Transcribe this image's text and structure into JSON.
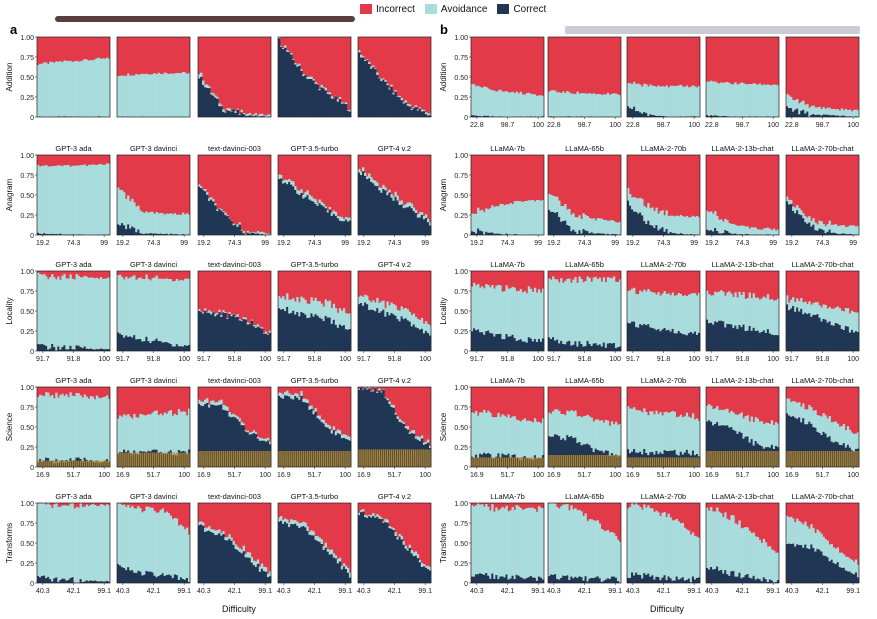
{
  "legend": {
    "incorrect": "Incorrect",
    "avoidance": "Avoidance",
    "correct": "Correct"
  },
  "colors": {
    "incorrect": "#e23a48",
    "avoidance": "#a9dcdc",
    "correct": "#1f3654",
    "supplement": "#b98a2e"
  },
  "panel_labels": {
    "a": "a",
    "b": "b"
  },
  "x_axis_title": "Difficulty",
  "chart_data": {
    "type": "area",
    "description_levels": [
      "Addition",
      "Anagram",
      "Locality",
      "Science",
      "Transforms"
    ],
    "ylim": [
      0,
      1
    ],
    "yticks": [
      "0",
      "0.25",
      "0.50",
      "0.75",
      "1.00"
    ],
    "groups": [
      {
        "panel": "a",
        "models": [
          "GPT-3 ada",
          "GPT-3 davinci",
          "text-davinci-003",
          "GPT-3.5-turbo",
          "GPT-4 v.2"
        ]
      },
      {
        "panel": "b",
        "models": [
          "LLaMA-7b",
          "LLaMA-65b",
          "LLaMA-2-70b",
          "LLaMA-2-13b-chat",
          "LLaMA-2-70b-chat"
        ]
      }
    ],
    "rows": [
      {
        "label": "Addition",
        "xticks_a": [],
        "xticks_b": [
          "22.8",
          "98.7",
          "100"
        ],
        "a": [
          {
            "correct": [
              0,
              0,
              0,
              0
            ],
            "avoid": [
              0.66,
              0.69,
              0.71,
              0.73
            ]
          },
          {
            "correct": [
              0,
              0,
              0,
              0
            ],
            "avoid": [
              0.52,
              0.54,
              0.55,
              0.55
            ]
          },
          {
            "correct": [
              0.5,
              0.1,
              0.02,
              0
            ],
            "avoid": [
              0.05,
              0.02,
              0.02,
              0.02
            ]
          },
          {
            "correct": [
              0.95,
              0.55,
              0.3,
              0.1
            ],
            "avoid": [
              0.02,
              0.02,
              0.02,
              0.02
            ]
          },
          {
            "correct": [
              0.8,
              0.45,
              0.15,
              0.02
            ],
            "avoid": [
              0.02,
              0.02,
              0.02,
              0.02
            ]
          }
        ],
        "b": [
          {
            "correct": [
              0.02,
              0,
              0,
              0
            ],
            "avoid": [
              0.38,
              0.33,
              0.3,
              0.27
            ]
          },
          {
            "correct": [
              0,
              0,
              0,
              0
            ],
            "avoid": [
              0.32,
              0.3,
              0.29,
              0.28
            ]
          },
          {
            "correct": [
              0.12,
              0.02,
              0,
              0
            ],
            "avoid": [
              0.3,
              0.38,
              0.38,
              0.38
            ]
          },
          {
            "correct": [
              0.02,
              0,
              0,
              0
            ],
            "avoid": [
              0.42,
              0.42,
              0.41,
              0.4
            ]
          },
          {
            "correct": [
              0.1,
              0.03,
              0.02,
              0
            ],
            "avoid": [
              0.15,
              0.1,
              0.08,
              0.08
            ]
          }
        ]
      },
      {
        "label": "Anagram",
        "xticks_a": [
          "19.2",
          "74.3",
          "99"
        ],
        "xticks_b": [
          "19.2",
          "74.3",
          "99"
        ],
        "a": [
          {
            "correct": [
              0.02,
              0.01,
              0,
              0
            ],
            "avoid": [
              0.85,
              0.86,
              0.87,
              0.88
            ]
          },
          {
            "correct": [
              0.15,
              0.02,
              0.01,
              0
            ],
            "avoid": [
              0.45,
              0.27,
              0.25,
              0.26
            ]
          },
          {
            "correct": [
              0.6,
              0.25,
              0.03,
              0
            ],
            "avoid": [
              0.02,
              0.02,
              0.02,
              0.02
            ]
          },
          {
            "correct": [
              0.72,
              0.5,
              0.3,
              0.15
            ],
            "avoid": [
              0.05,
              0.05,
              0.04,
              0.04
            ]
          },
          {
            "correct": [
              0.8,
              0.55,
              0.35,
              0.15
            ],
            "avoid": [
              0.05,
              0.05,
              0.05,
              0.05
            ]
          }
        ],
        "b": [
          {
            "correct": [
              0.05,
              0.02,
              0,
              0
            ],
            "avoid": [
              0.22,
              0.35,
              0.42,
              0.44
            ]
          },
          {
            "correct": [
              0.35,
              0.05,
              0.02,
              0
            ],
            "avoid": [
              0.2,
              0.2,
              0.18,
              0.16
            ]
          },
          {
            "correct": [
              0.4,
              0.1,
              0.02,
              0
            ],
            "avoid": [
              0.15,
              0.22,
              0.22,
              0.23
            ]
          },
          {
            "correct": [
              0.1,
              0.02,
              0,
              0
            ],
            "avoid": [
              0.25,
              0.12,
              0.08,
              0.07
            ]
          },
          {
            "correct": [
              0.4,
              0.1,
              0.02,
              0
            ],
            "avoid": [
              0.05,
              0.08,
              0.1,
              0.1
            ]
          }
        ]
      },
      {
        "label": "Locality",
        "xticks_a": [
          "91.7",
          "91.8",
          "100"
        ],
        "xticks_b": [
          "91.7",
          "91.8",
          "100"
        ],
        "a": [
          {
            "correct": [
              0.06,
              0.04,
              0.03,
              0.02
            ],
            "avoid": [
              0.88,
              0.88,
              0.89,
              0.89
            ]
          },
          {
            "correct": [
              0.2,
              0.15,
              0.1,
              0.06
            ],
            "avoid": [
              0.72,
              0.77,
              0.8,
              0.84
            ]
          },
          {
            "correct": [
              0.5,
              0.45,
              0.38,
              0.2
            ],
            "avoid": [
              0.02,
              0.02,
              0.02,
              0.02
            ]
          },
          {
            "correct": [
              0.55,
              0.45,
              0.4,
              0.25
            ],
            "avoid": [
              0.15,
              0.18,
              0.2,
              0.2
            ]
          },
          {
            "correct": [
              0.6,
              0.48,
              0.38,
              0.18
            ],
            "avoid": [
              0.1,
              0.12,
              0.13,
              0.12
            ]
          }
        ],
        "b": [
          {
            "correct": [
              0.25,
              0.2,
              0.15,
              0.12
            ],
            "avoid": [
              0.55,
              0.6,
              0.62,
              0.63
            ]
          },
          {
            "correct": [
              0.15,
              0.1,
              0.08,
              0.06
            ],
            "avoid": [
              0.75,
              0.8,
              0.82,
              0.83
            ]
          },
          {
            "correct": [
              0.35,
              0.3,
              0.25,
              0.2
            ],
            "avoid": [
              0.4,
              0.45,
              0.47,
              0.5
            ]
          },
          {
            "correct": [
              0.38,
              0.32,
              0.27,
              0.22
            ],
            "avoid": [
              0.35,
              0.4,
              0.42,
              0.45
            ]
          },
          {
            "correct": [
              0.55,
              0.45,
              0.35,
              0.2
            ],
            "avoid": [
              0.1,
              0.15,
              0.2,
              0.25
            ]
          }
        ]
      },
      {
        "label": "Science",
        "xticks_a": [
          "16.9",
          "51.7",
          "100"
        ],
        "xticks_b": [
          "16.9",
          "51.7",
          "100"
        ],
        "supplement": [
          0.08,
          0.18,
          0.2,
          0.2,
          0.22,
          0.12,
          0.15,
          0.12,
          0.2,
          0.2
        ],
        "a": [
          {
            "correct": [
              0.08,
              0.08,
              0.08,
              0.08
            ],
            "avoid": [
              0.82,
              0.82,
              0.8,
              0.8
            ]
          },
          {
            "correct": [
              0.18,
              0.18,
              0.18,
              0.18
            ],
            "avoid": [
              0.45,
              0.45,
              0.5,
              0.5
            ]
          },
          {
            "correct": [
              0.8,
              0.75,
              0.45,
              0.3
            ],
            "avoid": [
              0.05,
              0.05,
              0.03,
              0.03
            ]
          },
          {
            "correct": [
              0.88,
              0.85,
              0.5,
              0.3
            ],
            "avoid": [
              0.05,
              0.05,
              0.04,
              0.04
            ]
          },
          {
            "correct": [
              0.98,
              0.95,
              0.45,
              0.25
            ],
            "avoid": [
              0.02,
              0.02,
              0.03,
              0.04
            ]
          }
        ],
        "b": [
          {
            "correct": [
              0.15,
              0.14,
              0.12,
              0.12
            ],
            "avoid": [
              0.55,
              0.5,
              0.48,
              0.45
            ]
          },
          {
            "correct": [
              0.4,
              0.35,
              0.2,
              0.15
            ],
            "avoid": [
              0.3,
              0.32,
              0.38,
              0.4
            ]
          },
          {
            "correct": [
              0.2,
              0.18,
              0.18,
              0.17
            ],
            "avoid": [
              0.55,
              0.5,
              0.48,
              0.45
            ]
          },
          {
            "correct": [
              0.55,
              0.5,
              0.3,
              0.22
            ],
            "avoid": [
              0.2,
              0.2,
              0.3,
              0.3
            ]
          },
          {
            "correct": [
              0.65,
              0.55,
              0.3,
              0.2
            ],
            "avoid": [
              0.2,
              0.2,
              0.25,
              0.2
            ]
          }
        ]
      },
      {
        "label": "Transforms",
        "xticks_a": [
          "40.3",
          "42.1",
          "99.1"
        ],
        "xticks_b": [
          "40.3",
          "42.1",
          "99.1"
        ],
        "a": [
          {
            "correct": [
              0.06,
              0.04,
              0.03,
              0.02
            ],
            "avoid": [
              0.92,
              0.93,
              0.95,
              0.96
            ]
          },
          {
            "correct": [
              0.2,
              0.12,
              0.08,
              0.05
            ],
            "avoid": [
              0.78,
              0.8,
              0.8,
              0.6
            ]
          },
          {
            "correct": [
              0.7,
              0.6,
              0.35,
              0.05
            ],
            "avoid": [
              0.05,
              0.05,
              0.06,
              0.05
            ]
          },
          {
            "correct": [
              0.75,
              0.7,
              0.4,
              0.1
            ],
            "avoid": [
              0.05,
              0.05,
              0.05,
              0.05
            ]
          },
          {
            "correct": [
              0.88,
              0.8,
              0.45,
              0.12
            ],
            "avoid": [
              0.03,
              0.03,
              0.04,
              0.04
            ]
          }
        ],
        "b": [
          {
            "correct": [
              0.1,
              0.08,
              0.06,
              0.04
            ],
            "avoid": [
              0.88,
              0.85,
              0.86,
              0.88
            ]
          },
          {
            "correct": [
              0.08,
              0.06,
              0.05,
              0.04
            ],
            "avoid": [
              0.9,
              0.88,
              0.7,
              0.5
            ]
          },
          {
            "correct": [
              0.1,
              0.08,
              0.06,
              0.04
            ],
            "avoid": [
              0.88,
              0.85,
              0.75,
              0.5
            ]
          },
          {
            "correct": [
              0.2,
              0.12,
              0.06,
              0.03
            ],
            "avoid": [
              0.75,
              0.7,
              0.55,
              0.35
            ]
          },
          {
            "correct": [
              0.5,
              0.45,
              0.25,
              0.1
            ],
            "avoid": [
              0.35,
              0.25,
              0.2,
              0.15
            ]
          }
        ]
      }
    ]
  }
}
